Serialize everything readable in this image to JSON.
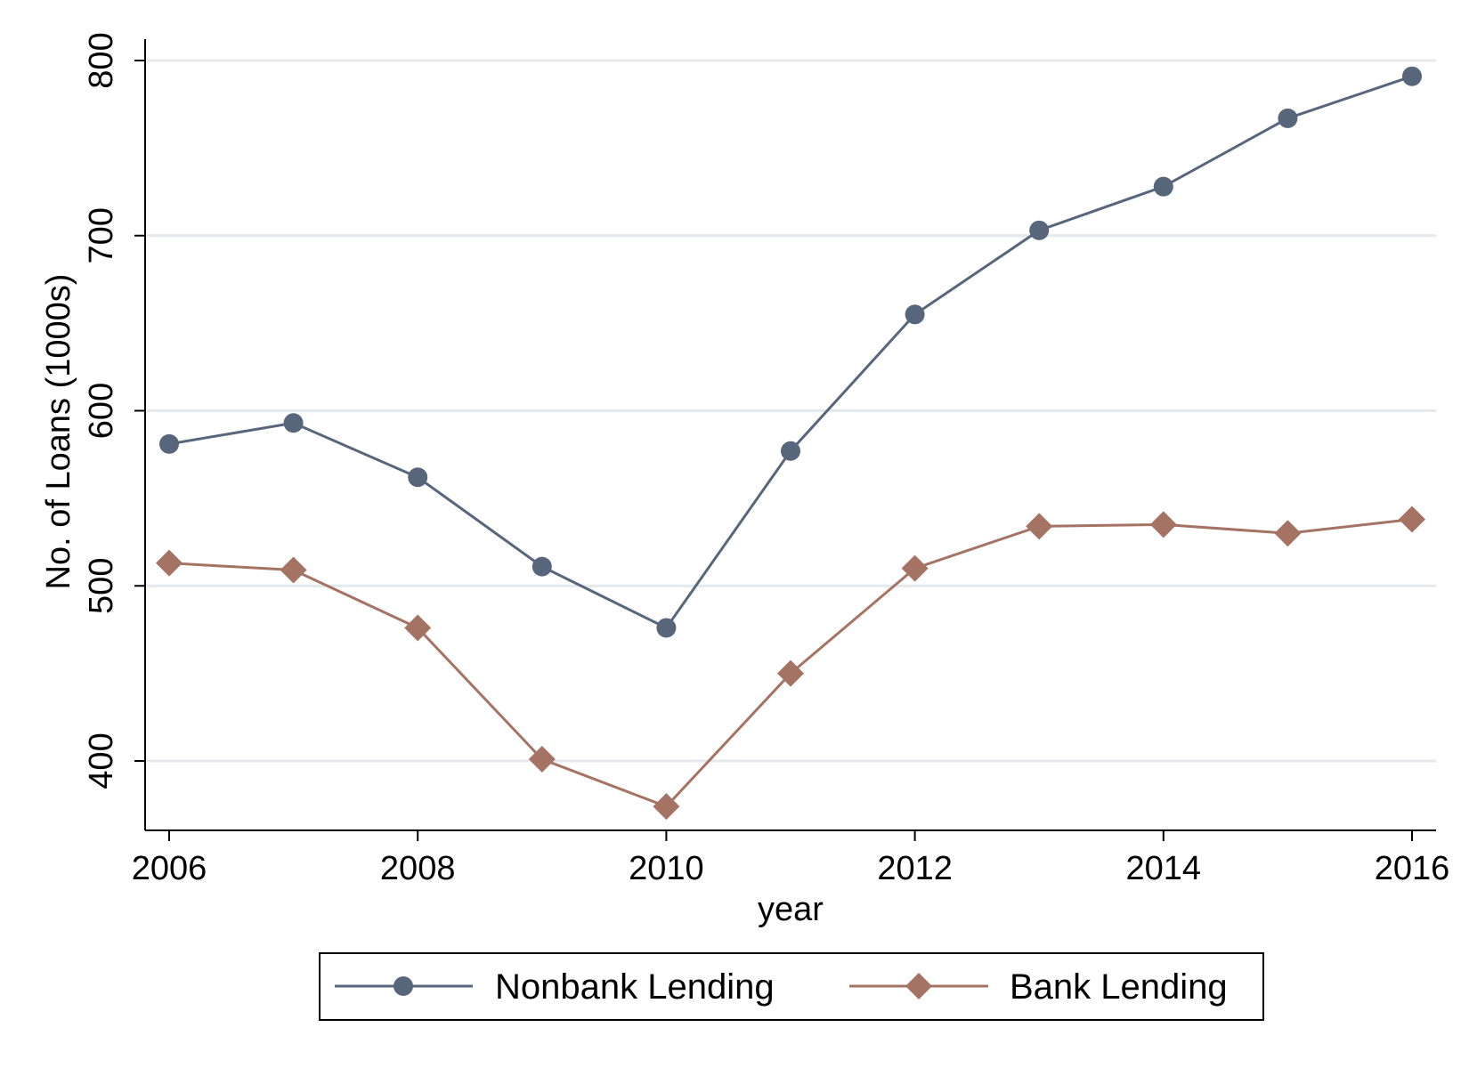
{
  "chart_data": {
    "type": "line",
    "xlabel": "year",
    "ylabel": "No. of Loans (1000s)",
    "x": [
      2006,
      2007,
      2008,
      2009,
      2010,
      2011,
      2012,
      2013,
      2014,
      2015,
      2016
    ],
    "xticks": [
      2006,
      2008,
      2010,
      2012,
      2014,
      2016
    ],
    "yticks": [
      400,
      500,
      600,
      700,
      800
    ],
    "xlim": [
      2006,
      2016
    ],
    "ylim": [
      360,
      812
    ],
    "grid": true,
    "legend": "bottom",
    "series": [
      {
        "name": "Nonbank Lending",
        "marker": "circle",
        "color": "#58667c",
        "values": [
          581,
          593,
          562,
          511,
          476,
          577,
          655,
          703,
          728,
          767,
          791
        ]
      },
      {
        "name": "Bank Lending",
        "marker": "diamond",
        "color": "#a57363",
        "values": [
          513,
          509,
          476,
          401,
          374,
          450,
          510,
          534,
          535,
          530,
          538
        ]
      }
    ]
  }
}
